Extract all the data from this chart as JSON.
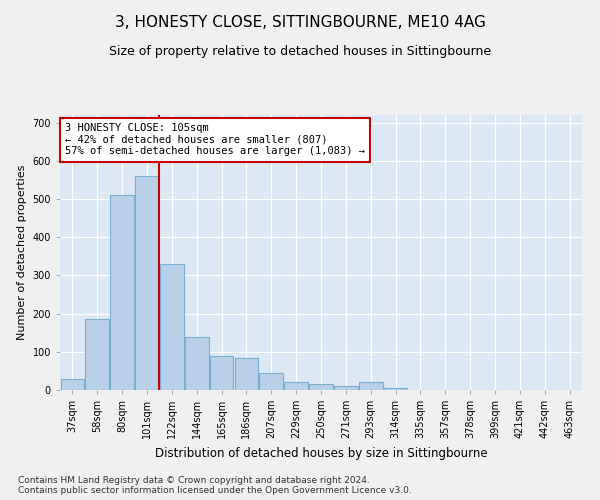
{
  "title": "3, HONESTY CLOSE, SITTINGBOURNE, ME10 4AG",
  "subtitle": "Size of property relative to detached houses in Sittingbourne",
  "xlabel": "Distribution of detached houses by size in Sittingbourne",
  "ylabel": "Number of detached properties",
  "categories": [
    "37sqm",
    "58sqm",
    "80sqm",
    "101sqm",
    "122sqm",
    "144sqm",
    "165sqm",
    "186sqm",
    "207sqm",
    "229sqm",
    "250sqm",
    "271sqm",
    "293sqm",
    "314sqm",
    "335sqm",
    "357sqm",
    "378sqm",
    "399sqm",
    "421sqm",
    "442sqm",
    "463sqm"
  ],
  "values": [
    30,
    185,
    510,
    560,
    330,
    140,
    90,
    85,
    45,
    20,
    15,
    10,
    20,
    5,
    0,
    0,
    0,
    0,
    0,
    0,
    0
  ],
  "bar_color": "#b8d0e8",
  "bar_edge_color": "#7aafd4",
  "red_line_x": 3.5,
  "annotation_text": "3 HONESTY CLOSE: 105sqm\n← 42% of detached houses are smaller (807)\n57% of semi-detached houses are larger (1,083) →",
  "annotation_box_color": "#ffffff",
  "annotation_box_edge_color": "#cc0000",
  "ylim": [
    0,
    720
  ],
  "yticks": [
    0,
    100,
    200,
    300,
    400,
    500,
    600,
    700
  ],
  "background_color": "#dce8f4",
  "grid_color": "#ffffff",
  "footer": "Contains HM Land Registry data © Crown copyright and database right 2024.\nContains public sector information licensed under the Open Government Licence v3.0.",
  "title_fontsize": 11,
  "subtitle_fontsize": 9,
  "xlabel_fontsize": 8.5,
  "ylabel_fontsize": 8,
  "tick_fontsize": 7,
  "footer_fontsize": 6.5
}
